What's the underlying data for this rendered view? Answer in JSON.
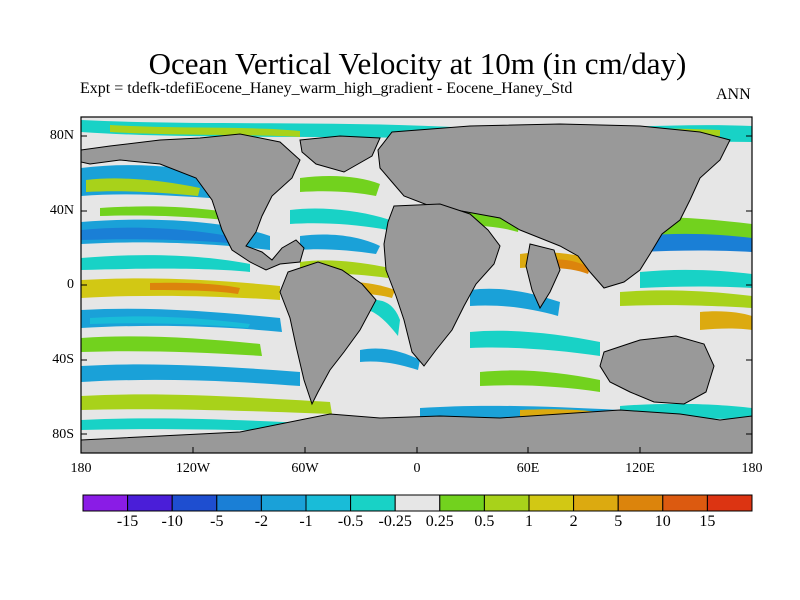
{
  "title": "Ocean Vertical Velocity at 10m (in cm/day)",
  "subtitle": "Expt = tdefk-tdefiEocene_Haney_warm_high_gradient - Eocene_Haney_Std",
  "season": "ANN",
  "map": {
    "projection": "cylindrical equidistant",
    "lon_range": [
      -180,
      180
    ],
    "lat_range": [
      -90,
      90
    ],
    "lat_ticks": [
      "80N",
      "40N",
      "0",
      "40S",
      "80S"
    ],
    "lon_ticks": [
      "180",
      "120W",
      "60W",
      "0",
      "60E",
      "120E",
      "180"
    ],
    "land_color": "#999999",
    "missing_color": "#e6e6e6"
  },
  "colorbar": {
    "levels": [
      "-15",
      "-10",
      "-5",
      "-2",
      "-1",
      "-0.5",
      "-0.25",
      "0.25",
      "0.5",
      "1",
      "2",
      "5",
      "10",
      "15"
    ],
    "colors": [
      "#8a1ce6",
      "#4a1ed8",
      "#1e4ed0",
      "#1a7fd6",
      "#1aa1d8",
      "#19bcd8",
      "#18d2c6",
      "#e6e6e6",
      "#72d21e",
      "#a8d21a",
      "#d2c814",
      "#dcaa10",
      "#dc840c",
      "#dc5a10",
      "#dc3412"
    ]
  }
}
